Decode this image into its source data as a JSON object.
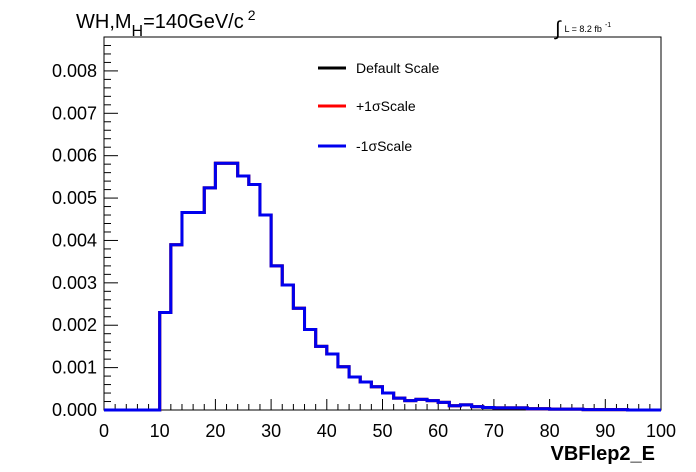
{
  "chart_data": {
    "type": "line",
    "title_parts": {
      "main": "WH,M",
      "sub": "H",
      "rest": "=140GeV/c",
      "sup": "2"
    },
    "lumi": {
      "integral": "∫",
      "text": "L = 8.2 fb",
      "sup": "-1"
    },
    "xlabel": "VBFlep2_E",
    "ylabel": "",
    "xlim": [
      0,
      100
    ],
    "ylim": [
      0,
      0.0088
    ],
    "xticks": [
      "0",
      "10",
      "20",
      "30",
      "40",
      "50",
      "60",
      "70",
      "80",
      "90",
      "100"
    ],
    "xtick_values": [
      0,
      10,
      20,
      30,
      40,
      50,
      60,
      70,
      80,
      90,
      100
    ],
    "yticks": [
      "0.000",
      "0.001",
      "0.002",
      "0.003",
      "0.004",
      "0.005",
      "0.006",
      "0.007",
      "0.008"
    ],
    "ytick_values": [
      0,
      0.001,
      0.002,
      0.003,
      0.004,
      0.005,
      0.006,
      0.007,
      0.008
    ],
    "grid": false,
    "legend_position": "top-center",
    "bin_edges": [
      0,
      2,
      4,
      6,
      8,
      10,
      12,
      14,
      16,
      18,
      20,
      22,
      24,
      26,
      28,
      30,
      32,
      34,
      36,
      38,
      40,
      42,
      44,
      46,
      48,
      50,
      52,
      54,
      56,
      58,
      60,
      62,
      64,
      66,
      68,
      70,
      72,
      74,
      76,
      78,
      80,
      82,
      84,
      86,
      88,
      90,
      92,
      94,
      96,
      98,
      100
    ],
    "series": [
      {
        "name": "Default Scale",
        "color": "#000000",
        "values": [
          0,
          0,
          0,
          0,
          0,
          0.0023,
          0.0039,
          0.00466,
          0.00466,
          0.00524,
          0.00582,
          0.00582,
          0.00552,
          0.00532,
          0.0046,
          0.0034,
          0.00295,
          0.0024,
          0.0019,
          0.0015,
          0.00132,
          0.00102,
          0.00078,
          0.00066,
          0.00055,
          0.0004,
          0.00028,
          0.00022,
          0.00025,
          0.00022,
          0.00018,
          0.0001,
          0.00012,
          8e-05,
          6e-05,
          5e-05,
          5e-05,
          5e-05,
          3e-05,
          3e-05,
          2e-05,
          2e-05,
          2e-05,
          1e-05,
          1e-05,
          1e-05,
          1e-05,
          0,
          0,
          0
        ]
      },
      {
        "name": "+1σScale",
        "color": "#ff0000",
        "values": [
          0,
          0,
          0,
          0,
          0,
          0.0023,
          0.0039,
          0.00466,
          0.00466,
          0.00524,
          0.00582,
          0.00582,
          0.00552,
          0.00532,
          0.0046,
          0.0034,
          0.00295,
          0.0024,
          0.0019,
          0.0015,
          0.00132,
          0.00102,
          0.00078,
          0.00066,
          0.00055,
          0.0004,
          0.00028,
          0.00022,
          0.00025,
          0.00022,
          0.00018,
          0.0001,
          0.00012,
          8e-05,
          6e-05,
          5e-05,
          5e-05,
          5e-05,
          3e-05,
          3e-05,
          2e-05,
          2e-05,
          2e-05,
          1e-05,
          1e-05,
          1e-05,
          1e-05,
          0,
          0,
          0
        ]
      },
      {
        "name": "-1σScale",
        "color": "#0000ee",
        "values": [
          0,
          0,
          0,
          0,
          0,
          0.0023,
          0.0039,
          0.00466,
          0.00466,
          0.00524,
          0.00582,
          0.00582,
          0.00552,
          0.00532,
          0.0046,
          0.0034,
          0.00295,
          0.0024,
          0.0019,
          0.0015,
          0.00132,
          0.00102,
          0.00078,
          0.00066,
          0.00055,
          0.0004,
          0.00028,
          0.00022,
          0.00025,
          0.00022,
          0.00018,
          0.0001,
          0.00012,
          8e-05,
          6e-05,
          5e-05,
          5e-05,
          5e-05,
          3e-05,
          3e-05,
          2e-05,
          2e-05,
          2e-05,
          1e-05,
          1e-05,
          1e-05,
          1e-05,
          0,
          0,
          0
        ]
      }
    ]
  }
}
